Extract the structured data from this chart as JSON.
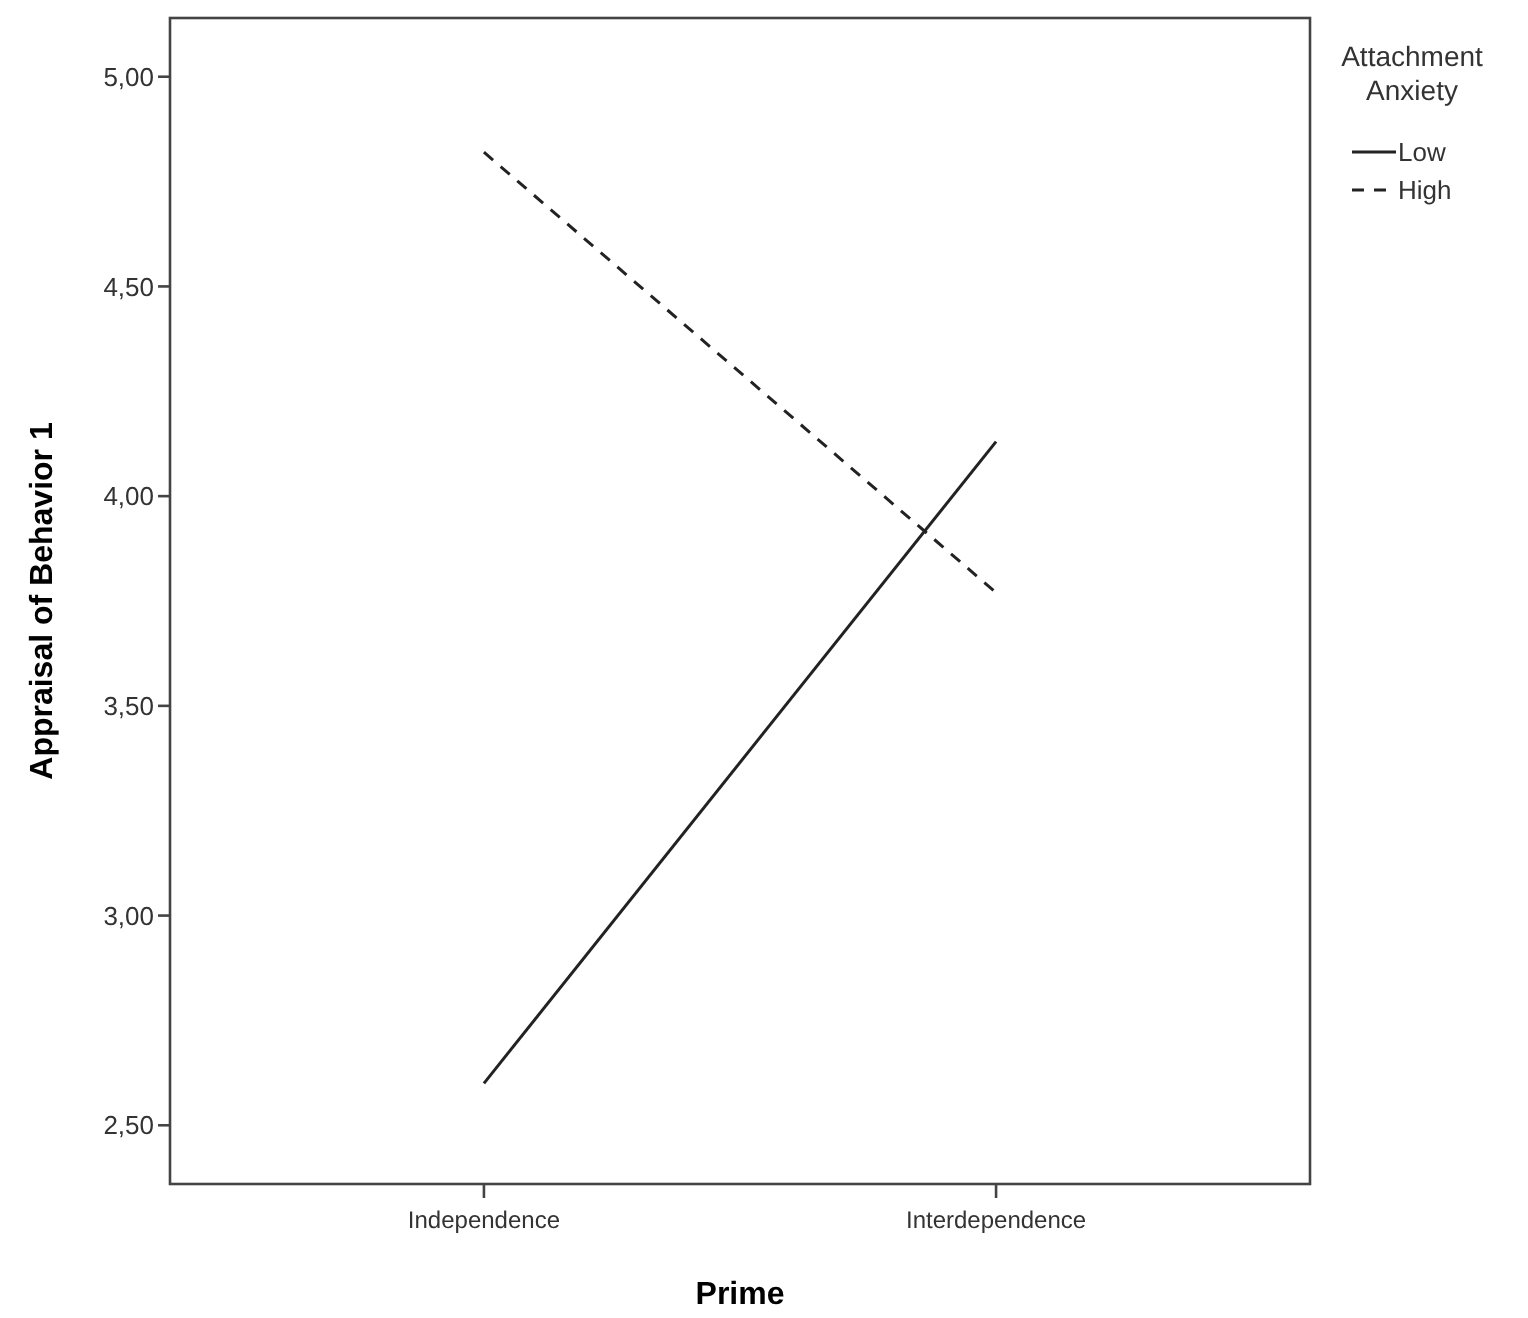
{
  "chart_data": {
    "type": "line",
    "xlabel": "Prime",
    "ylabel": "Appraisal of Behavior 1",
    "legend_title": "Attachment Anxiety",
    "categories": [
      "Independence",
      "Interdependence"
    ],
    "series": [
      {
        "name": "Low",
        "color": "#222222",
        "values": [
          2.6,
          4.13
        ],
        "line_style": "solid"
      },
      {
        "name": "High",
        "color": "#222222",
        "values": [
          4.82,
          3.77
        ],
        "line_style": "dashed"
      }
    ],
    "ylim": [
      2.36,
      5.14
    ],
    "yticks": [
      {
        "value": 2.5,
        "label": "2,50"
      },
      {
        "value": 3,
        "label": "3,00"
      },
      {
        "value": 3.5,
        "label": "3,50"
      },
      {
        "value": 4,
        "label": "4,00"
      },
      {
        "value": 4.5,
        "label": "4,50"
      },
      {
        "value": 5,
        "label": "5,00"
      }
    ],
    "grid": false,
    "legend": "top right",
    "marker": "none"
  }
}
